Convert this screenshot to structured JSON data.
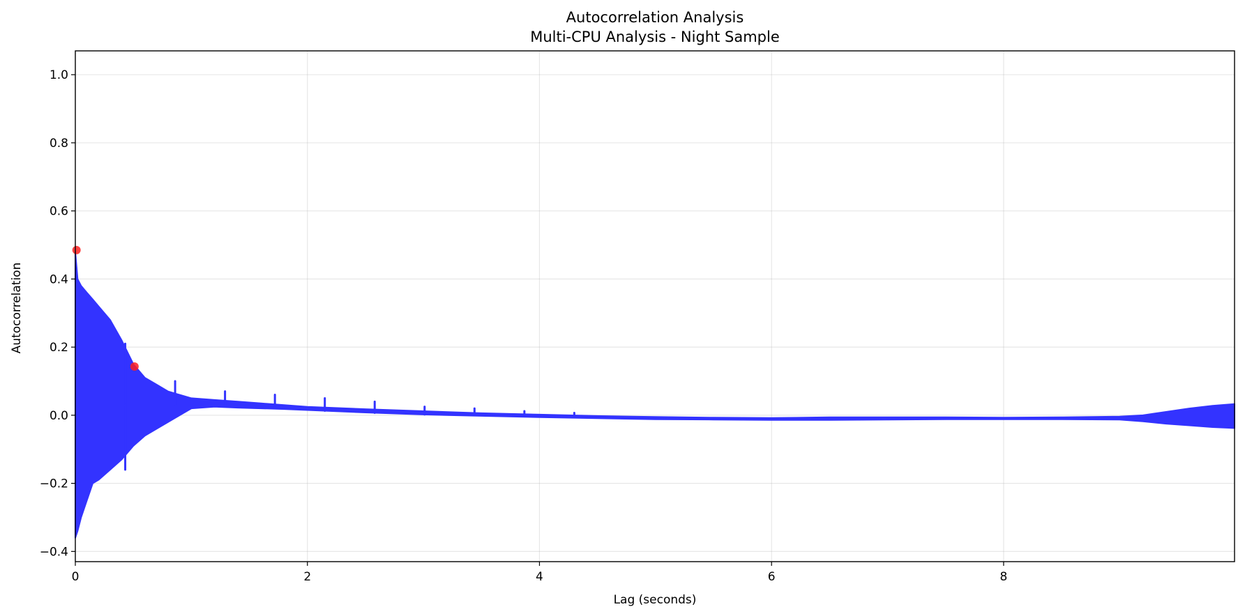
{
  "chart_data": {
    "type": "line",
    "title": "Autocorrelation Analysis",
    "subtitle": "Multi-CPU Analysis - Night Sample",
    "xlabel": "Lag (seconds)",
    "ylabel": "Autocorrelation",
    "xlim": [
      0,
      9.99
    ],
    "ylim": [
      -0.43,
      1.07
    ],
    "x_ticks": [
      0,
      2,
      4,
      6,
      8
    ],
    "x_tick_labels": [
      "0",
      "2",
      "4",
      "6",
      "8"
    ],
    "y_ticks": [
      -0.4,
      -0.2,
      0.0,
      0.2,
      0.4,
      0.6,
      0.8,
      1.0
    ],
    "y_tick_labels": [
      "−0.4",
      "−0.2",
      "0.0",
      "0.2",
      "0.4",
      "0.6",
      "0.8",
      "1.0"
    ],
    "grid": true,
    "series": [
      {
        "color": "#3333ff",
        "envelope": {
          "x": [
            0,
            0.02,
            0.05,
            0.1,
            0.15,
            0.2,
            0.3,
            0.4,
            0.5,
            0.6,
            0.7,
            0.8,
            0.9,
            1.0,
            1.2,
            1.4,
            1.6,
            1.8,
            2.0,
            2.5,
            3.0,
            3.5,
            4.0,
            4.5,
            5.0,
            5.5,
            6.0,
            6.5,
            7.0,
            7.5,
            8.0,
            8.5,
            9.0,
            9.2,
            9.4,
            9.6,
            9.8,
            9.99
          ],
          "upper": [
            0.48,
            0.4,
            0.38,
            0.36,
            0.34,
            0.32,
            0.28,
            0.22,
            0.15,
            0.11,
            0.09,
            0.07,
            0.06,
            0.05,
            0.045,
            0.04,
            0.035,
            0.03,
            0.025,
            0.018,
            0.012,
            0.006,
            0.002,
            -0.002,
            -0.005,
            -0.007,
            -0.008,
            -0.006,
            -0.006,
            -0.006,
            -0.007,
            -0.006,
            -0.004,
            0.0,
            0.01,
            0.02,
            0.028,
            0.033
          ],
          "lower": [
            -0.36,
            -0.34,
            -0.3,
            -0.25,
            -0.2,
            -0.19,
            -0.16,
            -0.13,
            -0.09,
            -0.06,
            -0.04,
            -0.02,
            0.0,
            0.02,
            0.025,
            0.022,
            0.02,
            0.018,
            0.015,
            0.008,
            0.002,
            -0.002,
            -0.006,
            -0.009,
            -0.012,
            -0.013,
            -0.014,
            -0.014,
            -0.013,
            -0.012,
            -0.012,
            -0.012,
            -0.013,
            -0.018,
            -0.025,
            -0.03,
            -0.035,
            -0.038
          ]
        },
        "spikes": [
          {
            "x": 0.43,
            "y": 0.21
          },
          {
            "x": 0.43,
            "y": -0.16
          },
          {
            "x": 0.86,
            "y": 0.1
          },
          {
            "x": 1.29,
            "y": 0.07
          },
          {
            "x": 1.72,
            "y": 0.06
          },
          {
            "x": 2.15,
            "y": 0.05
          },
          {
            "x": 2.58,
            "y": 0.04
          },
          {
            "x": 3.01,
            "y": 0.025
          },
          {
            "x": 3.44,
            "y": 0.02
          },
          {
            "x": 3.87,
            "y": 0.012
          },
          {
            "x": 4.3,
            "y": 0.007
          }
        ]
      }
    ],
    "peaks": {
      "color": "#ff2020",
      "points": [
        {
          "x": 0.01,
          "y": 0.485
        },
        {
          "x": 0.51,
          "y": 0.143
        }
      ]
    }
  }
}
